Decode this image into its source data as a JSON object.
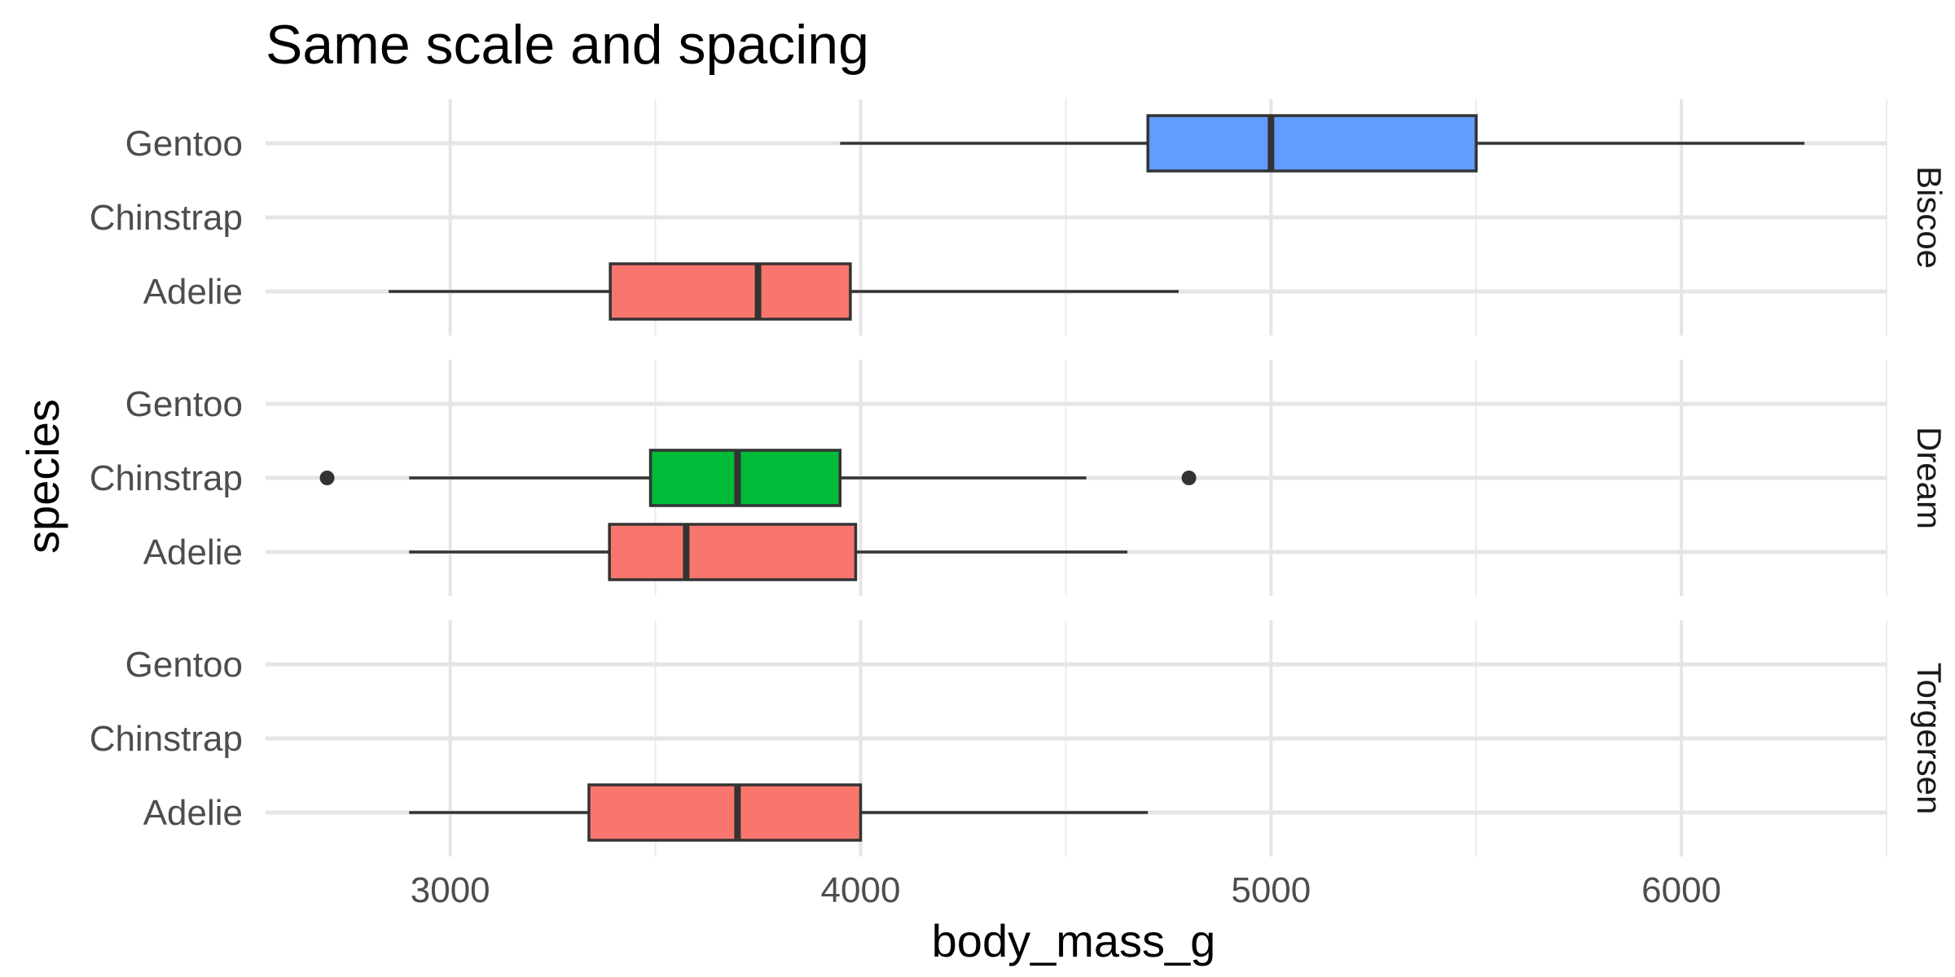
{
  "chart_data": {
    "type": "boxplot",
    "title": "Same scale and spacing",
    "xlabel": "body_mass_g",
    "ylabel": "species",
    "xlim": [
      2550,
      6500
    ],
    "x_ticks": [
      3000,
      4000,
      5000,
      6000
    ],
    "x_tick_labels": [
      "3000",
      "4000",
      "5000",
      "6000"
    ],
    "categories": [
      "Gentoo",
      "Chinstrap",
      "Adelie"
    ],
    "grid": true,
    "colors": {
      "Adelie": "#F8766D",
      "Chinstrap": "#00BA38",
      "Gentoo": "#619CFF"
    },
    "panels": [
      {
        "name": "Biscoe",
        "boxes": [
          {
            "species": "Gentoo",
            "whisker_low": 3950,
            "q1": 4700,
            "median": 5000,
            "q3": 5500,
            "whisker_high": 6300,
            "outliers": []
          },
          {
            "species": "Adelie",
            "whisker_low": 2850,
            "q1": 3390,
            "median": 3750,
            "q3": 3975,
            "whisker_high": 4775,
            "outliers": []
          }
        ]
      },
      {
        "name": "Dream",
        "boxes": [
          {
            "species": "Chinstrap",
            "whisker_low": 2900,
            "q1": 3488,
            "median": 3700,
            "q3": 3950,
            "whisker_high": 4550,
            "outliers": [
              2700,
              4800
            ]
          },
          {
            "species": "Adelie",
            "whisker_low": 2900,
            "q1": 3388,
            "median": 3575,
            "q3": 3988,
            "whisker_high": 4650,
            "outliers": []
          }
        ]
      },
      {
        "name": "Torgersen",
        "boxes": [
          {
            "species": "Adelie",
            "whisker_low": 2900,
            "q1": 3338,
            "median": 3700,
            "q3": 4000,
            "whisker_high": 4700,
            "outliers": []
          }
        ]
      }
    ]
  }
}
